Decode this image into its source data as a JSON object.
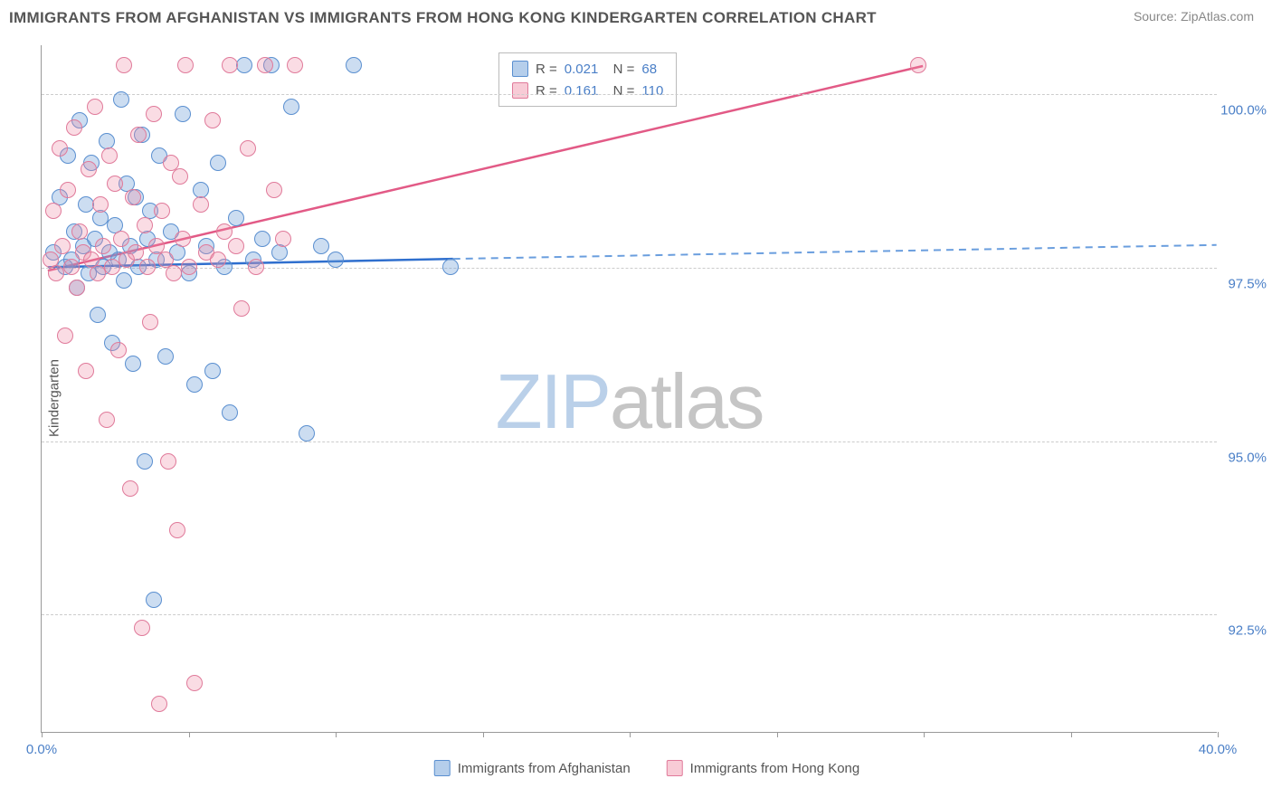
{
  "title": "IMMIGRANTS FROM AFGHANISTAN VS IMMIGRANTS FROM HONG KONG KINDERGARTEN CORRELATION CHART",
  "source_label": "Source: ZipAtlas.com",
  "ylabel": "Kindergarten",
  "watermark_a": "ZIP",
  "watermark_b": "atlas",
  "chart": {
    "type": "scatter",
    "xlim": [
      0,
      40
    ],
    "ylim": [
      90.8,
      100.7
    ],
    "xtick_positions": [
      0,
      5,
      10,
      15,
      20,
      25,
      30,
      35,
      40
    ],
    "xtick_labeled": {
      "0": "0.0%",
      "40": "40.0%"
    },
    "ytick_positions": [
      92.5,
      95.0,
      97.5,
      100.0
    ],
    "ytick_labels": [
      "92.5%",
      "95.0%",
      "97.5%",
      "100.0%"
    ],
    "background_color": "#ffffff",
    "grid_color": "#cccccc",
    "axis_color": "#999999",
    "label_color": "#555555",
    "tick_label_color": "#4a7fc7",
    "marker_radius": 9,
    "series": [
      {
        "name": "Immigrants from Afghanistan",
        "color_fill": "rgba(108,158,216,0.35)",
        "color_stroke": "#5a8fd0",
        "trend_color": "#2f6fce",
        "trend_dash_color": "#6a9ede",
        "R": "0.021",
        "N": "68",
        "trend": {
          "x0": 0.2,
          "y0": 97.5,
          "x_solid_end": 14.0,
          "y_solid_end": 97.62,
          "x1": 40.0,
          "y1": 97.82
        },
        "points": [
          [
            0.4,
            97.7
          ],
          [
            0.6,
            98.5
          ],
          [
            0.8,
            97.5
          ],
          [
            0.9,
            99.1
          ],
          [
            1.0,
            97.6
          ],
          [
            1.1,
            98.0
          ],
          [
            1.2,
            97.2
          ],
          [
            1.3,
            99.6
          ],
          [
            1.4,
            97.8
          ],
          [
            1.5,
            98.4
          ],
          [
            1.6,
            97.4
          ],
          [
            1.7,
            99.0
          ],
          [
            1.8,
            97.9
          ],
          [
            1.9,
            96.8
          ],
          [
            2.0,
            98.2
          ],
          [
            2.1,
            97.5
          ],
          [
            2.2,
            99.3
          ],
          [
            2.3,
            97.7
          ],
          [
            2.4,
            96.4
          ],
          [
            2.5,
            98.1
          ],
          [
            2.6,
            97.6
          ],
          [
            2.7,
            99.9
          ],
          [
            2.8,
            97.3
          ],
          [
            2.9,
            98.7
          ],
          [
            3.0,
            97.8
          ],
          [
            3.1,
            96.1
          ],
          [
            3.2,
            98.5
          ],
          [
            3.3,
            97.5
          ],
          [
            3.4,
            99.4
          ],
          [
            3.5,
            94.7
          ],
          [
            3.6,
            97.9
          ],
          [
            3.7,
            98.3
          ],
          [
            3.8,
            92.7
          ],
          [
            3.9,
            97.6
          ],
          [
            4.0,
            99.1
          ],
          [
            4.2,
            96.2
          ],
          [
            4.4,
            98.0
          ],
          [
            4.6,
            97.7
          ],
          [
            4.8,
            99.7
          ],
          [
            5.0,
            97.4
          ],
          [
            5.2,
            95.8
          ],
          [
            5.4,
            98.6
          ],
          [
            5.6,
            97.8
          ],
          [
            5.8,
            96.0
          ],
          [
            6.0,
            99.0
          ],
          [
            6.2,
            97.5
          ],
          [
            6.4,
            95.4
          ],
          [
            6.6,
            98.2
          ],
          [
            6.9,
            100.4
          ],
          [
            7.2,
            97.6
          ],
          [
            7.5,
            97.9
          ],
          [
            7.8,
            100.4
          ],
          [
            8.1,
            97.7
          ],
          [
            8.5,
            99.8
          ],
          [
            9.0,
            95.1
          ],
          [
            9.5,
            97.8
          ],
          [
            10.0,
            97.6
          ],
          [
            10.6,
            100.4
          ],
          [
            13.9,
            97.5
          ]
        ]
      },
      {
        "name": "Immigrants from Hong Kong",
        "color_fill": "rgba(240,140,165,0.3)",
        "color_stroke": "#e07a9a",
        "trend_color": "#e25a86",
        "R": "0.161",
        "N": "110",
        "trend": {
          "x0": 0.2,
          "y0": 97.45,
          "x_solid_end": 30.0,
          "y_solid_end": 100.4,
          "x1": 30.0,
          "y1": 100.4
        },
        "points": [
          [
            0.3,
            97.6
          ],
          [
            0.4,
            98.3
          ],
          [
            0.5,
            97.4
          ],
          [
            0.6,
            99.2
          ],
          [
            0.7,
            97.8
          ],
          [
            0.8,
            96.5
          ],
          [
            0.9,
            98.6
          ],
          [
            1.0,
            97.5
          ],
          [
            1.1,
            99.5
          ],
          [
            1.2,
            97.2
          ],
          [
            1.3,
            98.0
          ],
          [
            1.4,
            97.7
          ],
          [
            1.5,
            96.0
          ],
          [
            1.6,
            98.9
          ],
          [
            1.7,
            97.6
          ],
          [
            1.8,
            99.8
          ],
          [
            1.9,
            97.4
          ],
          [
            2.0,
            98.4
          ],
          [
            2.1,
            97.8
          ],
          [
            2.2,
            95.3
          ],
          [
            2.3,
            99.1
          ],
          [
            2.4,
            97.5
          ],
          [
            2.5,
            98.7
          ],
          [
            2.6,
            96.3
          ],
          [
            2.7,
            97.9
          ],
          [
            2.8,
            100.4
          ],
          [
            2.9,
            97.6
          ],
          [
            3.0,
            94.3
          ],
          [
            3.1,
            98.5
          ],
          [
            3.2,
            97.7
          ],
          [
            3.3,
            99.4
          ],
          [
            3.4,
            92.3
          ],
          [
            3.5,
            98.1
          ],
          [
            3.6,
            97.5
          ],
          [
            3.7,
            96.7
          ],
          [
            3.8,
            99.7
          ],
          [
            3.9,
            97.8
          ],
          [
            4.0,
            91.2
          ],
          [
            4.1,
            98.3
          ],
          [
            4.2,
            97.6
          ],
          [
            4.3,
            94.7
          ],
          [
            4.4,
            99.0
          ],
          [
            4.5,
            97.4
          ],
          [
            4.6,
            93.7
          ],
          [
            4.7,
            98.8
          ],
          [
            4.8,
            97.9
          ],
          [
            4.9,
            100.4
          ],
          [
            5.0,
            97.5
          ],
          [
            5.2,
            91.5
          ],
          [
            5.4,
            98.4
          ],
          [
            5.6,
            97.7
          ],
          [
            5.8,
            99.6
          ],
          [
            6.0,
            97.6
          ],
          [
            6.2,
            98.0
          ],
          [
            6.4,
            100.4
          ],
          [
            6.6,
            97.8
          ],
          [
            6.8,
            96.9
          ],
          [
            7.0,
            99.2
          ],
          [
            7.3,
            97.5
          ],
          [
            7.6,
            100.4
          ],
          [
            7.9,
            98.6
          ],
          [
            8.2,
            97.9
          ],
          [
            8.6,
            100.4
          ],
          [
            29.8,
            100.4
          ]
        ]
      }
    ]
  },
  "bottom_legend": [
    {
      "swatch": "blue",
      "label": "Immigrants from Afghanistan"
    },
    {
      "swatch": "pink",
      "label": "Immigrants from Hong Kong"
    }
  ]
}
